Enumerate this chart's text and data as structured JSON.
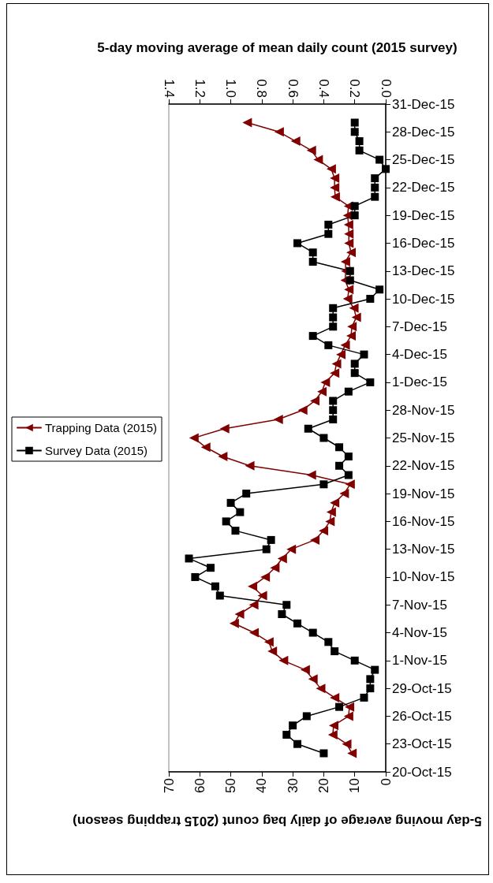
{
  "chart_data": {
    "type": "line",
    "orientation": "horizontal",
    "xlabel": "5-day moving average of daily bag count (2015 trapping season)",
    "x2label": "5-day moving average of mean daily count (2015 survey)",
    "x": [
      "2015-10-22",
      "2015-10-23",
      "2015-10-24",
      "2015-10-25",
      "2015-10-26",
      "2015-10-27",
      "2015-10-28",
      "2015-10-29",
      "2015-10-30",
      "2015-10-31",
      "2015-11-01",
      "2015-11-02",
      "2015-11-03",
      "2015-11-04",
      "2015-11-05",
      "2015-11-06",
      "2015-11-07",
      "2015-11-08",
      "2015-11-09",
      "2015-11-10",
      "2015-11-11",
      "2015-11-12",
      "2015-11-13",
      "2015-11-14",
      "2015-11-15",
      "2015-11-16",
      "2015-11-17",
      "2015-11-18",
      "2015-11-19",
      "2015-11-20",
      "2015-11-21",
      "2015-11-22",
      "2015-11-23",
      "2015-11-24",
      "2015-11-25",
      "2015-11-26",
      "2015-11-27",
      "2015-11-28",
      "2015-11-29",
      "2015-11-30",
      "2015-12-01",
      "2015-12-02",
      "2015-12-03",
      "2015-12-04",
      "2015-12-05",
      "2015-12-06",
      "2015-12-07",
      "2015-12-08",
      "2015-12-09",
      "2015-12-10",
      "2015-12-11",
      "2015-12-12",
      "2015-12-13",
      "2015-12-14",
      "2015-12-15",
      "2015-12-16",
      "2015-12-17",
      "2015-12-18",
      "2015-12-19",
      "2015-12-20",
      "2015-12-21",
      "2015-12-22",
      "2015-12-23",
      "2015-12-24",
      "2015-12-25",
      "2015-12-26",
      "2015-12-27",
      "2015-12-28",
      "2015-12-29"
    ],
    "series": [
      {
        "name": "Trapping Data (2015)",
        "color": "#800000",
        "marker": "triangle",
        "values": [
          10.9,
          12.6,
          17.1,
          16.8,
          12.0,
          11.7,
          16.5,
          21.0,
          23.5,
          26.0,
          33.0,
          36.6,
          37.7,
          42.5,
          48.9,
          47.2,
          42.6,
          39.8,
          43.0,
          38.9,
          35.8,
          33.4,
          30.5,
          22.9,
          20.1,
          18.0,
          17.6,
          16.5,
          13.4,
          11.5,
          24.0,
          43.9,
          52.6,
          58.1,
          61.9,
          52.0,
          34.7,
          26.8,
          22.9,
          20.6,
          19.5,
          16.5,
          15.9,
          14.5,
          13.1,
          11.2,
          10.9,
          9.5,
          10.3,
          12.3,
          11.9,
          13.1,
          12.9,
          13.0,
          11.2,
          11.9,
          11.9,
          12.0,
          12.3,
          12.0,
          16.3,
          16.5,
          16.5,
          17.6,
          21.8,
          24.0,
          29.1,
          34.4,
          44.7
        ]
      },
      {
        "name": "Survey Data (2015)",
        "color": "#000000",
        "marker": "square",
        "axis": "x2",
        "values": [
          0.4,
          0.57,
          0.64,
          0.6,
          0.51,
          0.3,
          0.14,
          0.1,
          0.1,
          0.07,
          0.2,
          0.33,
          0.37,
          0.47,
          0.57,
          0.67,
          0.64,
          1.07,
          1.1,
          1.23,
          1.13,
          1.27,
          0.77,
          0.74,
          0.97,
          1.03,
          0.94,
          1.0,
          0.9,
          0.4,
          0.24,
          0.3,
          0.24,
          0.3,
          0.4,
          0.5,
          0.34,
          0.34,
          0.34,
          0.24,
          0.1,
          0.2,
          0.2,
          0.14,
          0.37,
          0.47,
          0.34,
          0.34,
          0.34,
          0.1,
          0.04,
          0.23,
          0.23,
          0.47,
          0.47,
          0.57,
          0.37,
          0.37,
          0.2,
          0.2,
          0.07,
          0.07,
          0.07,
          0.0,
          0.04,
          0.17,
          0.17,
          0.2,
          0.2
        ]
      }
    ],
    "ylim": [
      "2015-10-20",
      "2015-12-31"
    ],
    "yticks": [
      {
        "value": "2015-10-20",
        "label": "20-Oct-15"
      },
      {
        "value": "2015-10-23",
        "label": "23-Oct-15"
      },
      {
        "value": "2015-10-26",
        "label": "26-Oct-15"
      },
      {
        "value": "2015-10-29",
        "label": "29-Oct-15"
      },
      {
        "value": "2015-11-01",
        "label": "1-Nov-15"
      },
      {
        "value": "2015-11-04",
        "label": "4-Nov-15"
      },
      {
        "value": "2015-11-07",
        "label": "7-Nov-15"
      },
      {
        "value": "2015-11-10",
        "label": "10-Nov-15"
      },
      {
        "value": "2015-11-13",
        "label": "13-Nov-15"
      },
      {
        "value": "2015-11-16",
        "label": "16-Nov-15"
      },
      {
        "value": "2015-11-19",
        "label": "19-Nov-15"
      },
      {
        "value": "2015-11-22",
        "label": "22-Nov-15"
      },
      {
        "value": "2015-11-25",
        "label": "25-Nov-15"
      },
      {
        "value": "2015-11-28",
        "label": "28-Nov-15"
      },
      {
        "value": "2015-12-01",
        "label": "1-Dec-15"
      },
      {
        "value": "2015-12-04",
        "label": "4-Dec-15"
      },
      {
        "value": "2015-12-07",
        "label": "7-Dec-15"
      },
      {
        "value": "2015-12-10",
        "label": "10-Dec-15"
      },
      {
        "value": "2015-12-13",
        "label": "13-Dec-15"
      },
      {
        "value": "2015-12-16",
        "label": "16-Dec-15"
      },
      {
        "value": "2015-12-19",
        "label": "19-Dec-15"
      },
      {
        "value": "2015-12-22",
        "label": "22-Dec-15"
      },
      {
        "value": "2015-12-25",
        "label": "25-Dec-15"
      },
      {
        "value": "2015-12-28",
        "label": "28-Dec-15"
      },
      {
        "value": "2015-12-31",
        "label": "31-Dec-15"
      }
    ],
    "xlim": [
      70,
      0
    ],
    "xticks": [
      0,
      10,
      20,
      30,
      40,
      50,
      60,
      70
    ],
    "x2lim": [
      1.4,
      0
    ],
    "x2ticks": [
      {
        "value": 0,
        "label": "0.0"
      },
      {
        "value": 0.2,
        "label": "0.2"
      },
      {
        "value": 0.4,
        "label": "0.4"
      },
      {
        "value": 0.6,
        "label": "0.6"
      },
      {
        "value": 0.8,
        "label": "0.8"
      },
      {
        "value": 1.0,
        "label": "1.0"
      },
      {
        "value": 1.2,
        "label": "1.2"
      },
      {
        "value": 1.4,
        "label": "1.4"
      }
    ],
    "grid": false,
    "legend": "left",
    "line_style": "solid"
  }
}
